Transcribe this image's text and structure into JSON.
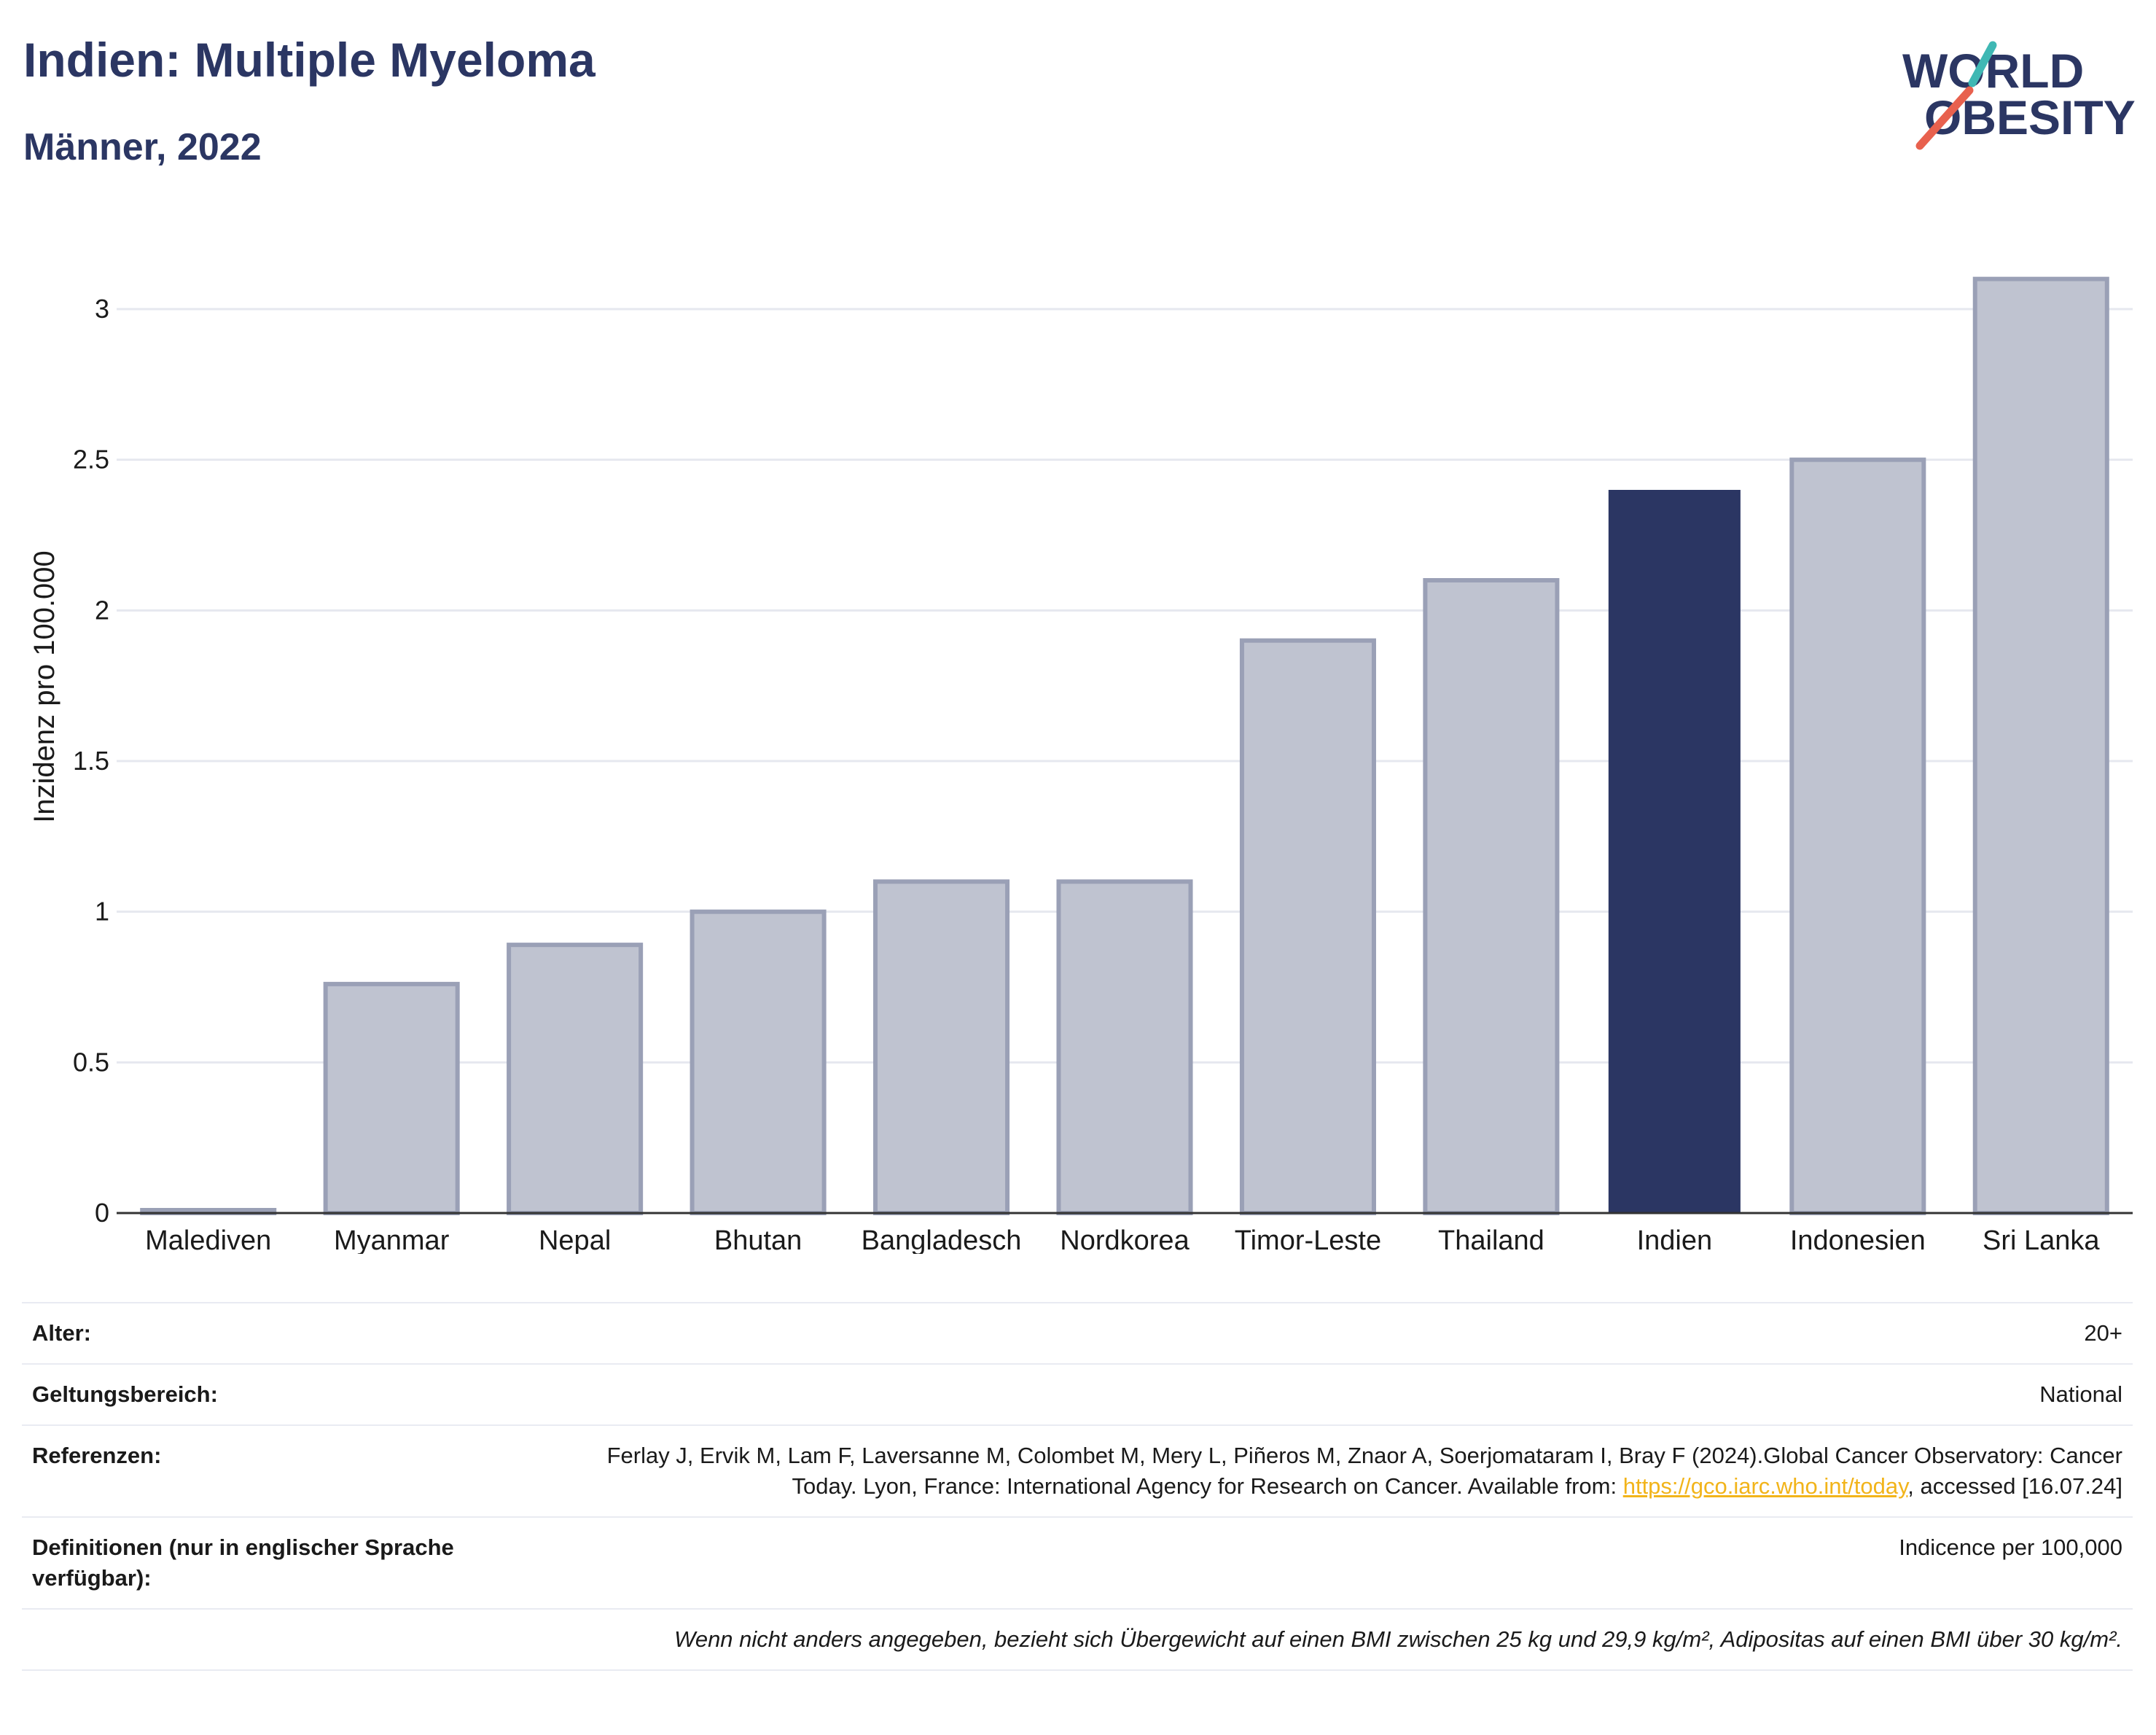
{
  "header": {
    "title": "Indien: Multiple Myeloma",
    "subtitle": "Männer, 2022",
    "logo": {
      "line1": "WORLD",
      "line2": "OBESITY",
      "colors": {
        "text": "#2b3663",
        "slash_top": "#3fb8b4",
        "slash_bottom": "#e8614e"
      }
    }
  },
  "chart_data": {
    "type": "bar",
    "title": "",
    "xlabel": "",
    "ylabel": "Inzidenz pro 100.000",
    "categories": [
      "Malediven",
      "Myanmar",
      "Nepal",
      "Bhutan",
      "Bangladesch",
      "Nordkorea",
      "Timor-Leste",
      "Thailand",
      "Indien",
      "Indonesien",
      "Sri Lanka"
    ],
    "values": [
      0,
      0.76,
      0.89,
      1.0,
      1.1,
      1.1,
      1.9,
      2.1,
      2.4,
      2.5,
      3.1
    ],
    "highlight": "Indien",
    "ylim": [
      0,
      3.3
    ],
    "yticks": [
      0,
      0.5,
      1,
      1.5,
      2,
      2.5,
      3
    ],
    "ytick_labels": [
      "0",
      "0.5",
      "1",
      "1.5",
      "2",
      "2.5",
      "3"
    ],
    "grid": true,
    "colors": {
      "bar": "#bfc3d0",
      "bar_border": "#9aa0b6",
      "highlight": "#2b3663",
      "grid": "#e6e8ef",
      "axis": "#333333"
    }
  },
  "info": {
    "rows": [
      {
        "label": "Alter:",
        "value": "20+"
      },
      {
        "label": "Geltungsbereich:",
        "value": "National"
      },
      {
        "label": "Referenzen:",
        "value_pre": "Ferlay J, Ervik M, Lam F, Laversanne M, Colombet M, Mery L, Piñeros M, Znaor A, Soerjomataram I, Bray F (2024).Global Cancer Observatory: Cancer Today. Lyon, France: International Agency for Research on Cancer. Available from: ",
        "link": "https://gco.iarc.who.int/today",
        "value_post": ", accessed [16.07.24]"
      },
      {
        "label": "Definitionen (nur in englischer Sprache verfügbar):",
        "value": "Indicence per 100,000"
      }
    ],
    "note": "Wenn nicht anders angegeben, bezieht sich Übergewicht auf einen BMI zwischen 25 kg und 29,9 kg/m², Adipositas auf einen BMI über 30 kg/m²."
  }
}
